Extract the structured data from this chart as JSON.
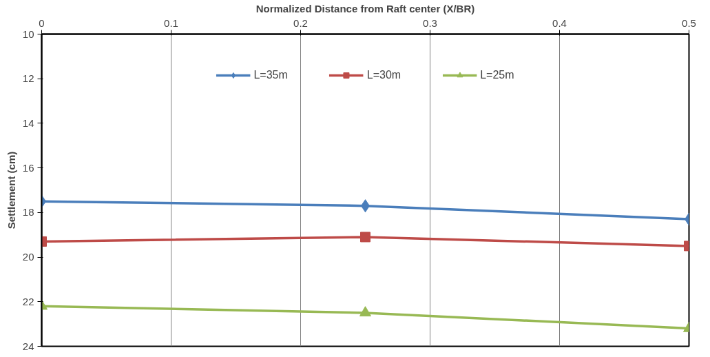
{
  "chart_data": {
    "type": "line",
    "xlabel": "Normalized Distance from Raft center (X/BR)",
    "ylabel": "Settlement (cm)",
    "x": [
      0,
      0.25,
      0.5
    ],
    "series": [
      {
        "name": "L=35m",
        "color": "#4a7ebb",
        "marker": "diamond",
        "values": [
          17.5,
          17.7,
          18.3
        ]
      },
      {
        "name": "L=30m",
        "color": "#be4b48",
        "marker": "square",
        "values": [
          19.3,
          19.1,
          19.5
        ]
      },
      {
        "name": "L=25m",
        "color": "#98b954",
        "marker": "triangle",
        "values": [
          22.2,
          22.5,
          23.2
        ]
      }
    ],
    "xlim": [
      0,
      0.5
    ],
    "xticks": [
      0,
      0.1,
      0.2,
      0.3,
      0.4,
      0.5
    ],
    "ylim": [
      24,
      10
    ],
    "yticks": [
      10,
      12,
      14,
      16,
      18,
      20,
      22,
      24
    ],
    "grid": "x",
    "legend": "top",
    "line_style": "solid"
  }
}
